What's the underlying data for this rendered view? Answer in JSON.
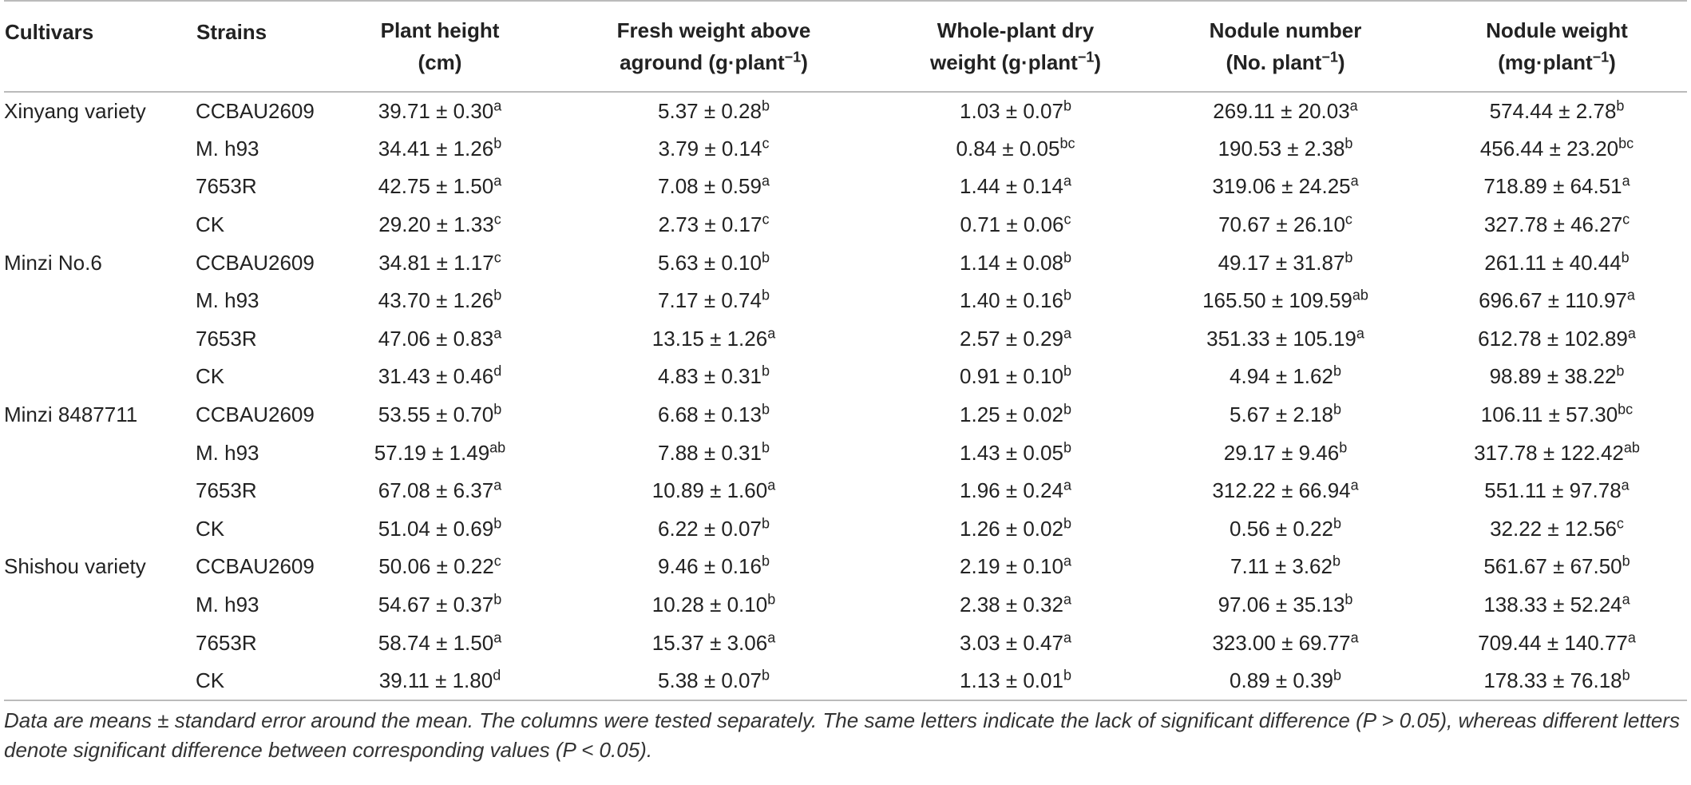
{
  "table": {
    "header": [
      {
        "line1": "Cultivars"
      },
      {
        "line1": "Strains"
      },
      {
        "line1": "Plant height",
        "line2": "(cm)"
      },
      {
        "line1": "Fresh weight above",
        "line2": "aground (g·plant",
        "sup": "−1",
        "tail": ")"
      },
      {
        "line1": "Whole-plant dry",
        "line2": "weight (g·plant",
        "sup": "−1",
        "tail": ")"
      },
      {
        "line1": "Nodule number",
        "line2": "(No. plant",
        "sup": "−1",
        "tail": ")"
      },
      {
        "line1": "Nodule weight",
        "line2": "(mg·plant",
        "sup": "−1",
        "tail": ")"
      }
    ],
    "groups": [
      {
        "cultivar": "Xinyang variety",
        "rows": [
          {
            "strain": "CCBAU2609",
            "cells": [
              [
                "39.71 ± 0.30",
                "a"
              ],
              [
                "5.37 ± 0.28",
                "b"
              ],
              [
                "1.03 ± 0.07",
                "b"
              ],
              [
                "269.11 ± 20.03",
                "a"
              ],
              [
                "574.44 ± 2.78",
                "b"
              ]
            ]
          },
          {
            "strain": "M. h93",
            "cells": [
              [
                "34.41 ± 1.26",
                "b"
              ],
              [
                "3.79 ± 0.14",
                "c"
              ],
              [
                "0.84 ± 0.05",
                "bc"
              ],
              [
                "190.53 ± 2.38",
                "b"
              ],
              [
                "456.44 ± 23.20",
                "bc"
              ]
            ]
          },
          {
            "strain": "7653R",
            "cells": [
              [
                "42.75 ± 1.50",
                "a"
              ],
              [
                "7.08 ± 0.59",
                "a"
              ],
              [
                "1.44 ± 0.14",
                "a"
              ],
              [
                "319.06 ± 24.25",
                "a"
              ],
              [
                "718.89 ± 64.51",
                "a"
              ]
            ]
          },
          {
            "strain": "CK",
            "cells": [
              [
                "29.20 ± 1.33",
                "c"
              ],
              [
                "2.73 ± 0.17",
                "c"
              ],
              [
                "0.71 ± 0.06",
                "c"
              ],
              [
                "70.67 ± 26.10",
                "c"
              ],
              [
                "327.78 ± 46.27",
                "c"
              ]
            ]
          }
        ]
      },
      {
        "cultivar": "Minzi No.6",
        "rows": [
          {
            "strain": "CCBAU2609",
            "cells": [
              [
                "34.81 ± 1.17",
                "c"
              ],
              [
                "5.63 ± 0.10",
                "b"
              ],
              [
                "1.14 ± 0.08",
                "b"
              ],
              [
                "49.17 ± 31.87",
                "b"
              ],
              [
                "261.11 ± 40.44",
                "b"
              ]
            ]
          },
          {
            "strain": "M. h93",
            "cells": [
              [
                "43.70 ± 1.26",
                "b"
              ],
              [
                "7.17 ± 0.74",
                "b"
              ],
              [
                "1.40 ± 0.16",
                "b"
              ],
              [
                "165.50 ± 109.59",
                "ab"
              ],
              [
                "696.67 ± 110.97",
                "a"
              ]
            ]
          },
          {
            "strain": "7653R",
            "cells": [
              [
                "47.06 ± 0.83",
                "a"
              ],
              [
                "13.15 ± 1.26",
                "a"
              ],
              [
                "2.57 ± 0.29",
                "a"
              ],
              [
                "351.33 ± 105.19",
                "a"
              ],
              [
                "612.78 ± 102.89",
                "a"
              ]
            ]
          },
          {
            "strain": "CK",
            "cells": [
              [
                "31.43 ± 0.46",
                "d"
              ],
              [
                "4.83 ± 0.31",
                "b"
              ],
              [
                "0.91 ± 0.10",
                "b"
              ],
              [
                "4.94 ± 1.62",
                "b"
              ],
              [
                "98.89 ± 38.22",
                "b"
              ]
            ]
          }
        ]
      },
      {
        "cultivar": "Minzi 8487711",
        "rows": [
          {
            "strain": "CCBAU2609",
            "cells": [
              [
                "53.55 ± 0.70",
                "b"
              ],
              [
                "6.68 ± 0.13",
                "b"
              ],
              [
                "1.25 ± 0.02",
                "b"
              ],
              [
                "5.67 ± 2.18",
                "b"
              ],
              [
                "106.11 ± 57.30",
                "bc"
              ]
            ]
          },
          {
            "strain": "M. h93",
            "cells": [
              [
                "57.19 ± 1.49",
                "ab"
              ],
              [
                "7.88 ± 0.31",
                "b"
              ],
              [
                "1.43 ± 0.05",
                "b"
              ],
              [
                "29.17 ± 9.46",
                "b"
              ],
              [
                "317.78 ± 122.42",
                "ab"
              ]
            ]
          },
          {
            "strain": "7653R",
            "cells": [
              [
                "67.08 ± 6.37",
                "a"
              ],
              [
                "10.89 ± 1.60",
                "a"
              ],
              [
                "1.96 ± 0.24",
                "a"
              ],
              [
                "312.22 ± 66.94",
                "a"
              ],
              [
                "551.11 ± 97.78",
                "a"
              ]
            ]
          },
          {
            "strain": "CK",
            "cells": [
              [
                "51.04 ± 0.69",
                "b"
              ],
              [
                "6.22 ± 0.07",
                "b"
              ],
              [
                "1.26 ± 0.02",
                "b"
              ],
              [
                "0.56 ± 0.22",
                "b"
              ],
              [
                "32.22 ± 12.56",
                "c"
              ]
            ]
          }
        ]
      },
      {
        "cultivar": "Shishou variety",
        "rows": [
          {
            "strain": "CCBAU2609",
            "cells": [
              [
                "50.06 ± 0.22",
                "c"
              ],
              [
                "9.46 ± 0.16",
                "b"
              ],
              [
                "2.19 ± 0.10",
                "a"
              ],
              [
                "7.11 ± 3.62",
                "b"
              ],
              [
                "561.67 ± 67.50",
                "b"
              ]
            ]
          },
          {
            "strain": "M. h93",
            "cells": [
              [
                "54.67 ± 0.37",
                "b"
              ],
              [
                "10.28 ± 0.10",
                "b"
              ],
              [
                "2.38 ± 0.32",
                "a"
              ],
              [
                "97.06 ± 35.13",
                "b"
              ],
              [
                "138.33 ± 52.24",
                "a"
              ]
            ]
          },
          {
            "strain": "7653R",
            "cells": [
              [
                "58.74 ± 1.50",
                "a"
              ],
              [
                "15.37 ± 3.06",
                "a"
              ],
              [
                "3.03 ± 0.47",
                "a"
              ],
              [
                "323.00 ± 69.77",
                "a"
              ],
              [
                "709.44 ± 140.77",
                "a"
              ]
            ]
          },
          {
            "strain": "CK",
            "cells": [
              [
                "39.11 ± 1.80",
                "d"
              ],
              [
                "5.38 ± 0.07",
                "b"
              ],
              [
                "1.13 ± 0.01",
                "b"
              ],
              [
                "0.89 ± 0.39",
                "b"
              ],
              [
                "178.33 ± 76.18",
                "b"
              ]
            ]
          }
        ]
      }
    ],
    "footnote": "Data are means ± standard error around the mean. The columns were tested separately. The same letters indicate the lack of significant difference (P > 0.05), whereas different letters denote significant difference between corresponding values (P < 0.05)."
  }
}
